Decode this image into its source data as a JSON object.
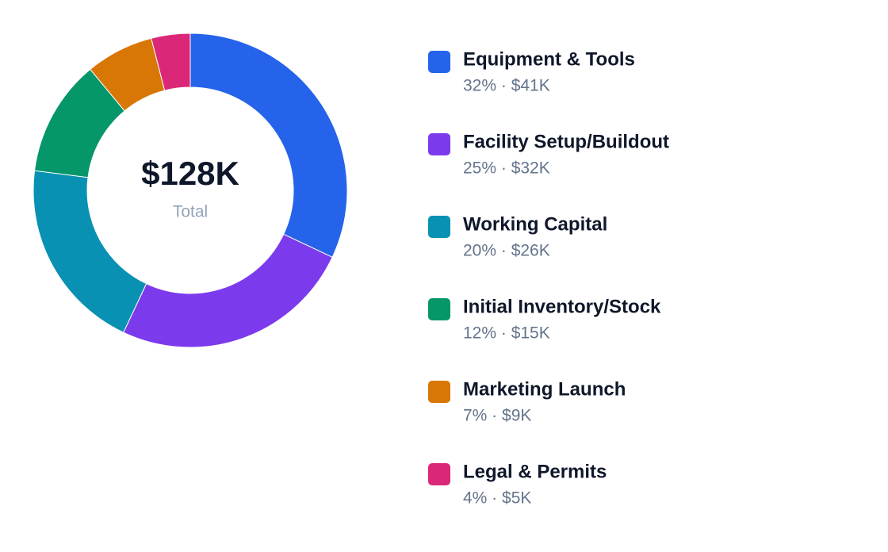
{
  "chart_data": {
    "type": "pie",
    "center_text": "$128K",
    "center_caption": "Total",
    "categories": [
      "Equipment & Tools",
      "Facility Setup/Buildout",
      "Working Capital",
      "Initial Inventory/Stock",
      "Marketing Launch",
      "Legal & Permits"
    ],
    "values": [
      32,
      25,
      20,
      12,
      7,
      4
    ],
    "value_labels": [
      "32% · $41K",
      "25% · $32K",
      "20% · $26K",
      "12% · $15K",
      "7% · $9K",
      "4% · $5K"
    ],
    "colors": [
      "#2563eb",
      "#7c3aed",
      "#0891b2",
      "#059669",
      "#d97706",
      "#db2777"
    ],
    "legend": "right"
  }
}
